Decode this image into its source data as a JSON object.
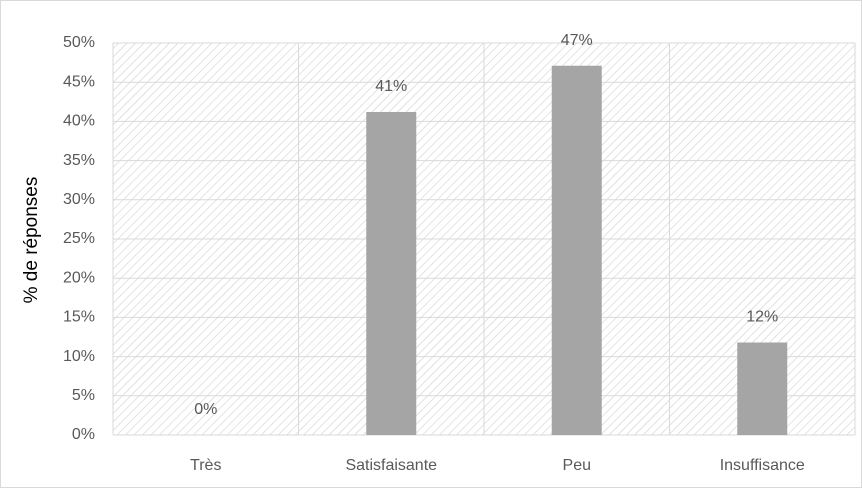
{
  "chart_data": {
    "type": "bar",
    "y_label": "% de réponses",
    "categories": [
      "Très",
      "Satisfaisante",
      "Peu",
      "Insuffisance"
    ],
    "values": [
      0,
      41.2,
      47.1,
      11.8
    ],
    "value_labels": [
      "0%",
      "41%",
      "47%",
      "12%"
    ],
    "color": "#a5a5a5",
    "ylim": [
      0,
      50
    ],
    "yticks": [
      {
        "value": 0,
        "label": "0%"
      },
      {
        "value": 5,
        "label": "5%"
      },
      {
        "value": 10,
        "label": "10%"
      },
      {
        "value": 15,
        "label": "15%"
      },
      {
        "value": 20,
        "label": "20%"
      },
      {
        "value": 25,
        "label": "25%"
      },
      {
        "value": 30,
        "label": "30%"
      },
      {
        "value": 35,
        "label": "35%"
      },
      {
        "value": 40,
        "label": "40%"
      },
      {
        "value": 45,
        "label": "45%"
      },
      {
        "value": 50,
        "label": "50%"
      }
    ],
    "grid": true
  }
}
